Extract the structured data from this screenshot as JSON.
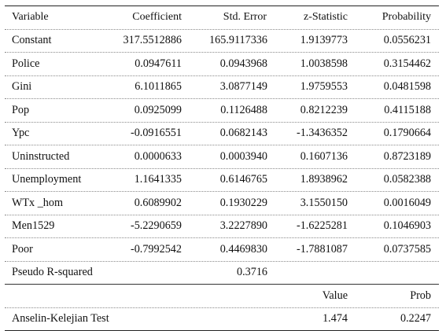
{
  "headers": [
    "Variable",
    "Coefficient",
    "Std. Error",
    "z-Statistic",
    "Probability"
  ],
  "rows": [
    [
      "Constant",
      "317.5512886",
      "165.9117336",
      "1.9139773",
      "0.0556231"
    ],
    [
      "Police",
      "0.0947611",
      "0.0943968",
      "1.0038598",
      "0.3154462"
    ],
    [
      "Gini",
      "6.1011865",
      "3.0877149",
      "1.9759553",
      "0.0481598"
    ],
    [
      "Pop",
      "0.0925099",
      "0.1126488",
      "0.8212239",
      "0.4115188"
    ],
    [
      "Ypc",
      "-0.0916551",
      "0.0682143",
      "-1.3436352",
      "0.1790664"
    ],
    [
      "Uninstructed",
      "0.0000633",
      "0.0003940",
      "0.1607136",
      "0.8723189"
    ],
    [
      "Unemployment",
      "1.1641335",
      "0.6146765",
      "1.8938962",
      "0.0582388"
    ],
    [
      "WTx _hom",
      "0.6089902",
      "0.1930229",
      "3.1550150",
      "0.0016049"
    ],
    [
      "Men1529",
      "-5.2290659",
      "3.2227890",
      "-1.6225281",
      "0.1046903"
    ],
    [
      "Poor",
      "-0.7992542",
      "0.4469830",
      "-1.7881087",
      "0.0737585"
    ]
  ],
  "pseudo_r2": {
    "label": "Pseudo R-squared",
    "value": "0.3716"
  },
  "test_headers": {
    "value": "Value",
    "prob": "Prob"
  },
  "test_row": {
    "label": "Anselin-Kelejian Test",
    "value": "1.474",
    "prob": "0.2247"
  }
}
